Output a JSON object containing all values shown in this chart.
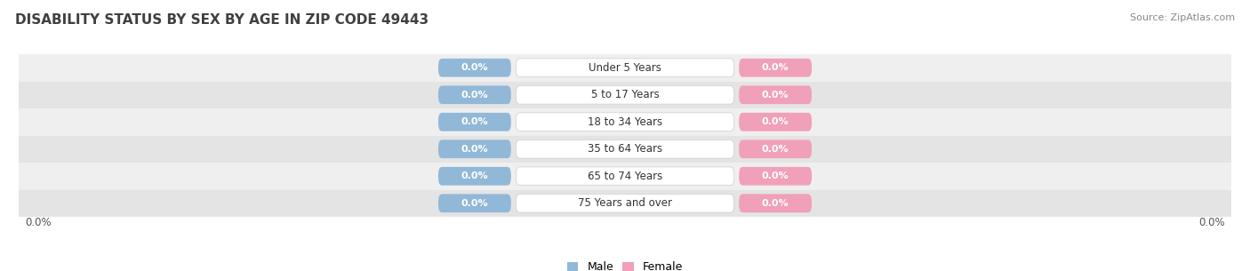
{
  "title": "DISABILITY STATUS BY SEX BY AGE IN ZIP CODE 49443",
  "source": "Source: ZipAtlas.com",
  "categories": [
    "Under 5 Years",
    "5 to 17 Years",
    "18 to 34 Years",
    "35 to 64 Years",
    "65 to 74 Years",
    "75 Years and over"
  ],
  "male_values": [
    0.0,
    0.0,
    0.0,
    0.0,
    0.0,
    0.0
  ],
  "female_values": [
    0.0,
    0.0,
    0.0,
    0.0,
    0.0,
    0.0
  ],
  "male_color": "#92b8d8",
  "female_color": "#f0a0b8",
  "male_label": "Male",
  "female_label": "Female",
  "row_bg_colors": [
    "#efefef",
    "#e4e4e4"
  ],
  "title_fontsize": 11,
  "axis_label_left": "0.0%",
  "axis_label_right": "0.0%",
  "background_color": "#ffffff",
  "title_color": "#404040",
  "source_color": "#888888",
  "value_text_color": "#ffffff",
  "category_text_color": "#333333"
}
